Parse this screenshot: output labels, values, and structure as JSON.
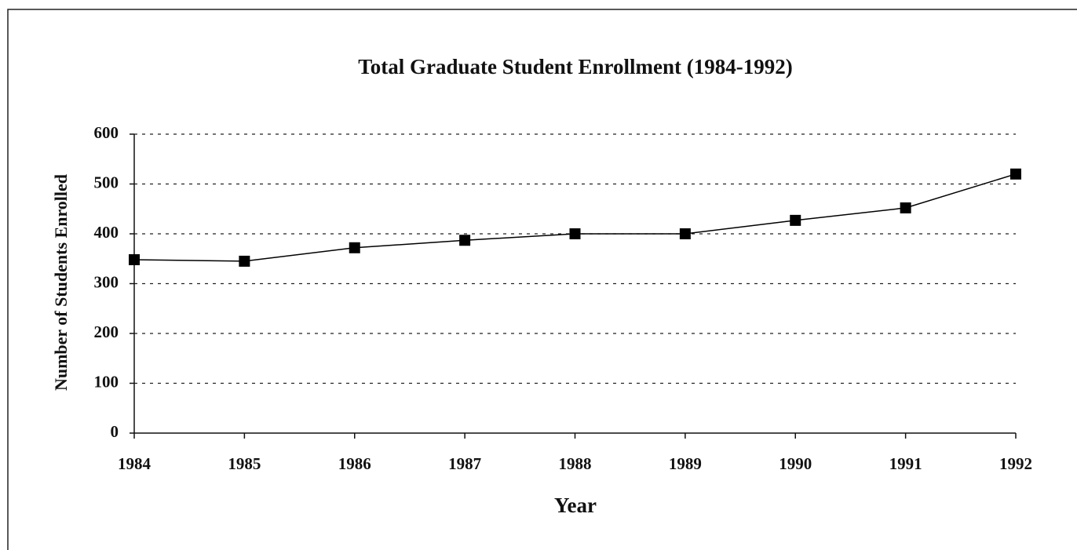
{
  "chart_data": {
    "type": "line",
    "title": "Total Graduate Student Enrollment (1984-1992)",
    "x_label": "Year",
    "y_label": "Number of Students Enrolled",
    "categories": [
      "1984",
      "1985",
      "1986",
      "1987",
      "1988",
      "1989",
      "1990",
      "1991",
      "1992"
    ],
    "series": [
      {
        "name": "Total Graduate Student Enrollment",
        "color": "#000000",
        "values": [
          348,
          345,
          372,
          387,
          400,
          400,
          427,
          452,
          520
        ]
      }
    ],
    "ylim": [
      0,
      600
    ],
    "yticks": [
      0,
      100,
      200,
      300,
      400,
      500,
      600
    ],
    "grid": true
  }
}
